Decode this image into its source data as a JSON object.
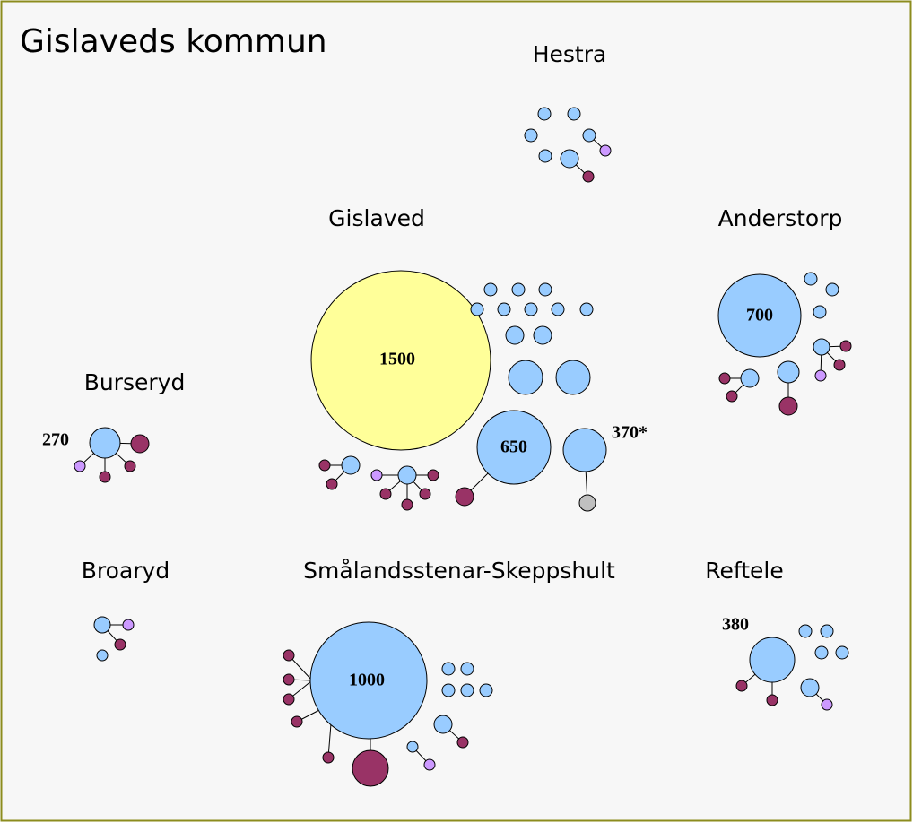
{
  "title": "Gislaveds kommun",
  "places": [
    {
      "name": "Hestra"
    },
    {
      "name": "Gislaved",
      "labels": [
        "1500",
        "650",
        "370*"
      ]
    },
    {
      "name": "Anderstorp",
      "labels": [
        "700"
      ]
    },
    {
      "name": "Burseryd",
      "labels": [
        "270"
      ]
    },
    {
      "name": "Broaryd"
    },
    {
      "name": "Smålandsstenar-Skeppshult",
      "labels": [
        "1000"
      ]
    },
    {
      "name": "Reftele",
      "labels": [
        "380"
      ]
    }
  ]
}
